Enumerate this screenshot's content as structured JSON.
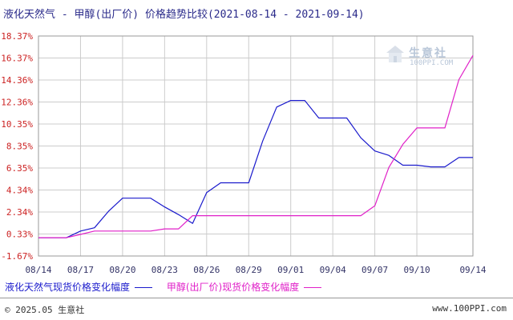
{
  "title": {
    "text": "液化天然气 - 甲醇(出厂价) 价格趋势比较",
    "date_range": "(2021-08-14 - 2021-09-14)"
  },
  "watermark": {
    "name": "生意社",
    "url": "100PPI.COM"
  },
  "footer": {
    "left": "© 2025.05 生意社",
    "right": "www.100PPI.com"
  },
  "colors": {
    "series1": "#1a1acc",
    "series2": "#e020c8",
    "ytick": "#cc2222",
    "grid": "#cccccc"
  },
  "chart_data": {
    "type": "line",
    "title": "液化天然气 - 甲醇(出厂价) 价格趋势比较",
    "xlabel": "",
    "ylabel": "",
    "ylim": [
      -1.67,
      18.37
    ],
    "yticks": [
      "18.37%",
      "16.37%",
      "14.36%",
      "12.36%",
      "10.35%",
      "8.35%",
      "6.35%",
      "4.34%",
      "2.34%",
      "0.33%",
      "-1.67%"
    ],
    "yticks_values": [
      18.37,
      16.37,
      14.36,
      12.36,
      10.35,
      8.35,
      6.35,
      4.34,
      2.34,
      0.33,
      -1.67
    ],
    "xticks": [
      "08/14",
      "08/17",
      "08/20",
      "08/23",
      "08/26",
      "08/29",
      "09/01",
      "09/04",
      "09/07",
      "09/10",
      "09/14"
    ],
    "x": [
      "08/14",
      "08/15",
      "08/16",
      "08/17",
      "08/18",
      "08/19",
      "08/20",
      "08/21",
      "08/22",
      "08/23",
      "08/24",
      "08/25",
      "08/26",
      "08/27",
      "08/28",
      "08/29",
      "08/30",
      "08/31",
      "09/01",
      "09/02",
      "09/03",
      "09/04",
      "09/05",
      "09/06",
      "09/07",
      "09/08",
      "09/09",
      "09/10",
      "09/11",
      "09/12",
      "09/13",
      "09/14"
    ],
    "grid": true,
    "legend_position": "bottom",
    "series": [
      {
        "name": "液化天然气现货价格变化幅度",
        "values": [
          0,
          0,
          0,
          0.6,
          0.9,
          2.4,
          3.6,
          3.6,
          3.6,
          2.8,
          2.1,
          1.3,
          4.1,
          5.0,
          5.0,
          5.0,
          8.8,
          11.9,
          12.5,
          12.5,
          10.9,
          10.9,
          10.9,
          9.1,
          7.9,
          7.5,
          6.6,
          6.6,
          6.45,
          6.45,
          7.3,
          7.3
        ]
      },
      {
        "name": "甲醇(出厂价)现货价格变化幅度",
        "values": [
          0,
          0,
          0,
          0.3,
          0.6,
          0.6,
          0.6,
          0.6,
          0.6,
          0.8,
          0.8,
          2.0,
          2.0,
          2.0,
          2.0,
          2.0,
          2.0,
          2.0,
          2.0,
          2.0,
          2.0,
          2.0,
          2.0,
          2.0,
          2.9,
          6.4,
          8.5,
          10.0,
          10.0,
          10.0,
          14.4,
          16.6
        ]
      }
    ]
  },
  "legend": [
    {
      "label": "液化天然气现货价格变化幅度"
    },
    {
      "label": "甲醇(出厂价)现货价格变化幅度"
    }
  ]
}
